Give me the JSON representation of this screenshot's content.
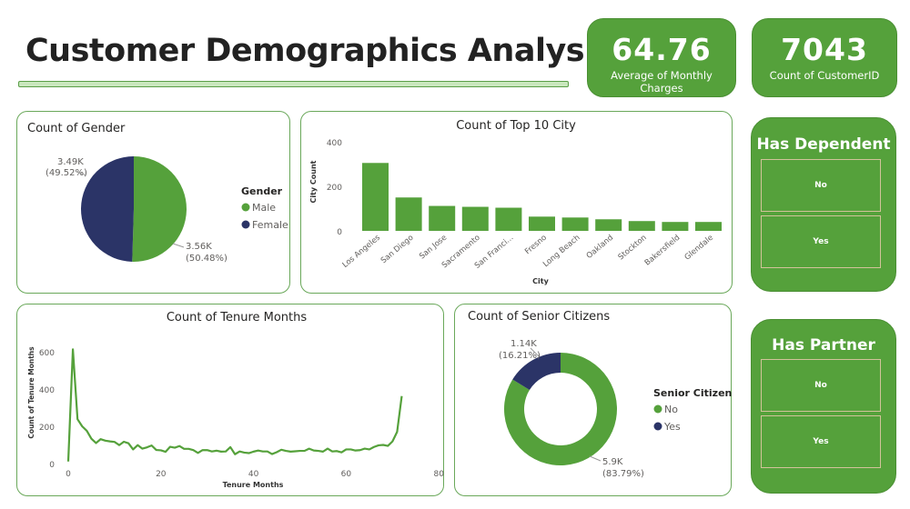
{
  "title": "Customer Demographics Analysis",
  "kpis": [
    {
      "value": "64.76",
      "label": "Average of Monthly Charges"
    },
    {
      "value": "7043",
      "label": "Count of CustomerID"
    }
  ],
  "slicers": [
    {
      "title": "Has Dependent",
      "options": [
        "No",
        "Yes"
      ]
    },
    {
      "title": "Has Partner",
      "options": [
        "No",
        "Yes"
      ]
    }
  ],
  "colors": {
    "green": "#55a13b",
    "navy": "#2b3467"
  },
  "chart_data": [
    {
      "type": "pie",
      "title": "Count of Gender",
      "legend_title": "Gender",
      "legend": "right",
      "slices": [
        {
          "name": "Male",
          "value": 3555,
          "label": "3.56K",
          "pct": "(50.48%)"
        },
        {
          "name": "Female",
          "value": 3488,
          "label": "3.49K",
          "pct": "(49.52%)"
        }
      ]
    },
    {
      "type": "bar",
      "title": "Count of Top 10 City",
      "xlabel": "City",
      "ylabel": "City Count",
      "ylim": [
        0,
        400
      ],
      "yticks": [
        0,
        200,
        400
      ],
      "categories": [
        "Los Angeles",
        "San Diego",
        "San Jose",
        "Sacramento",
        "San Franci...",
        "Fresno",
        "Long Beach",
        "Oakland",
        "Stockton",
        "Bakersfield",
        "Glendale"
      ],
      "values": [
        305,
        150,
        112,
        108,
        104,
        64,
        60,
        52,
        44,
        40,
        40
      ]
    },
    {
      "type": "line",
      "title": "Count of Tenure Months",
      "xlabel": "Tenure Months",
      "ylabel": "Count of Tenure Months",
      "xlim": [
        0,
        80
      ],
      "ylim": [
        0,
        600
      ],
      "xticks": [
        0,
        20,
        40,
        60,
        80
      ],
      "yticks": [
        0,
        200,
        400,
        600
      ],
      "x_start": 0,
      "values": [
        11,
        613,
        238,
        200,
        176,
        133,
        110,
        131,
        123,
        119,
        116,
        99,
        117,
        109,
        76,
        99,
        80,
        87,
        97,
        73,
        71,
        63,
        90,
        85,
        94,
        79,
        79,
        72,
        57,
        72,
        72,
        65,
        69,
        64,
        65,
        88,
        50,
        65,
        59,
        56,
        64,
        70,
        65,
        65,
        51,
        61,
        74,
        68,
        64,
        66,
        68,
        68,
        80,
        70,
        68,
        64,
        80,
        65,
        67,
        60,
        76,
        76,
        70,
        72,
        80,
        76,
        89,
        98,
        100,
        95,
        119,
        170,
        362
      ]
    },
    {
      "type": "pie",
      "subtype": "donut",
      "title": "Count of Senior Citizens",
      "legend_title": "Senior Citizen",
      "legend": "right",
      "slices": [
        {
          "name": "No",
          "value": 5901,
          "label": "5.9K",
          "pct": "(83.79%)"
        },
        {
          "name": "Yes",
          "value": 1142,
          "label": "1.14K",
          "pct": "(16.21%)"
        }
      ]
    }
  ]
}
